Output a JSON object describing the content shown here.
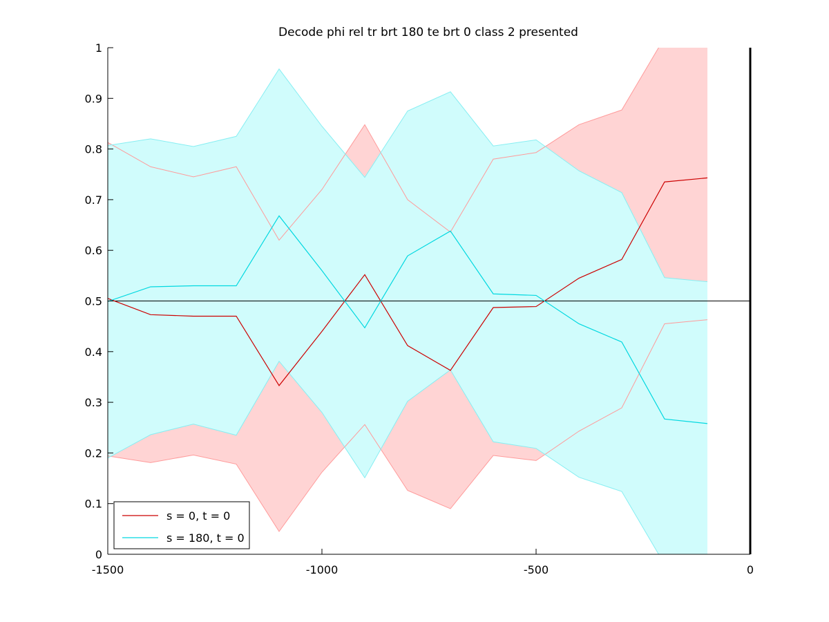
{
  "chart_data": {
    "type": "line",
    "title": "Decode phi rel tr brt 180 te brt 0  class 2 presented",
    "xlabel": "",
    "ylabel": "",
    "xlim": [
      -1500,
      0
    ],
    "ylim": [
      0,
      1
    ],
    "xticks": [
      -1500,
      -1000,
      -500,
      0
    ],
    "xtick_labels": [
      "-1500",
      "-1000",
      "-500",
      "0"
    ],
    "yticks": [
      0,
      0.1,
      0.2,
      0.3,
      0.4,
      0.5,
      0.6,
      0.7,
      0.8,
      0.9,
      1
    ],
    "ytick_labels": [
      "0",
      "0.1",
      "0.2",
      "0.3",
      "0.4",
      "0.5",
      "0.6",
      "0.7",
      "0.8",
      "0.9",
      "1"
    ],
    "grid": false,
    "legend_position": "bottom-left",
    "reference_lines": [
      {
        "orientation": "horizontal",
        "value": 0.5,
        "color": "#000000"
      },
      {
        "orientation": "vertical",
        "value": 0,
        "color": "#000000"
      }
    ],
    "x": [
      -1500,
      -1400,
      -1300,
      -1200,
      -1100,
      -1000,
      -900,
      -800,
      -700,
      -600,
      -500,
      -400,
      -300,
      -200,
      -100
    ],
    "series": [
      {
        "name": "s = 0, t = 0",
        "color": "#cc0000",
        "band_color": "#ffd4d4",
        "band_edge_color": "#ff9a9a",
        "mean": [
          0.505,
          0.473,
          0.47,
          0.47,
          0.333,
          0.44,
          0.552,
          0.412,
          0.363,
          0.487,
          0.489,
          0.545,
          0.582,
          0.735,
          0.743
        ],
        "upper": [
          0.813,
          0.765,
          0.745,
          0.765,
          0.62,
          0.72,
          0.848,
          0.7,
          0.636,
          0.78,
          0.793,
          0.848,
          0.877,
          1.02,
          1.02
        ],
        "lower": [
          0.194,
          0.181,
          0.196,
          0.178,
          0.045,
          0.162,
          0.256,
          0.126,
          0.09,
          0.195,
          0.185,
          0.243,
          0.289,
          0.455,
          0.463
        ]
      },
      {
        "name": "s = 180, t = 0",
        "color": "#00d8e0",
        "band_color": "#d0fcfc",
        "band_edge_color": "#86eef2",
        "mean": [
          0.499,
          0.528,
          0.53,
          0.53,
          0.668,
          0.56,
          0.447,
          0.589,
          0.638,
          0.514,
          0.511,
          0.455,
          0.419,
          0.267,
          0.258
        ],
        "upper": [
          0.807,
          0.82,
          0.805,
          0.825,
          0.958,
          0.845,
          0.744,
          0.875,
          0.913,
          0.806,
          0.818,
          0.757,
          0.714,
          0.546,
          0.538
        ],
        "lower": [
          0.19,
          0.236,
          0.257,
          0.235,
          0.381,
          0.28,
          0.151,
          0.302,
          0.364,
          0.222,
          0.209,
          0.152,
          0.124,
          -0.02,
          -0.02
        ]
      }
    ]
  }
}
